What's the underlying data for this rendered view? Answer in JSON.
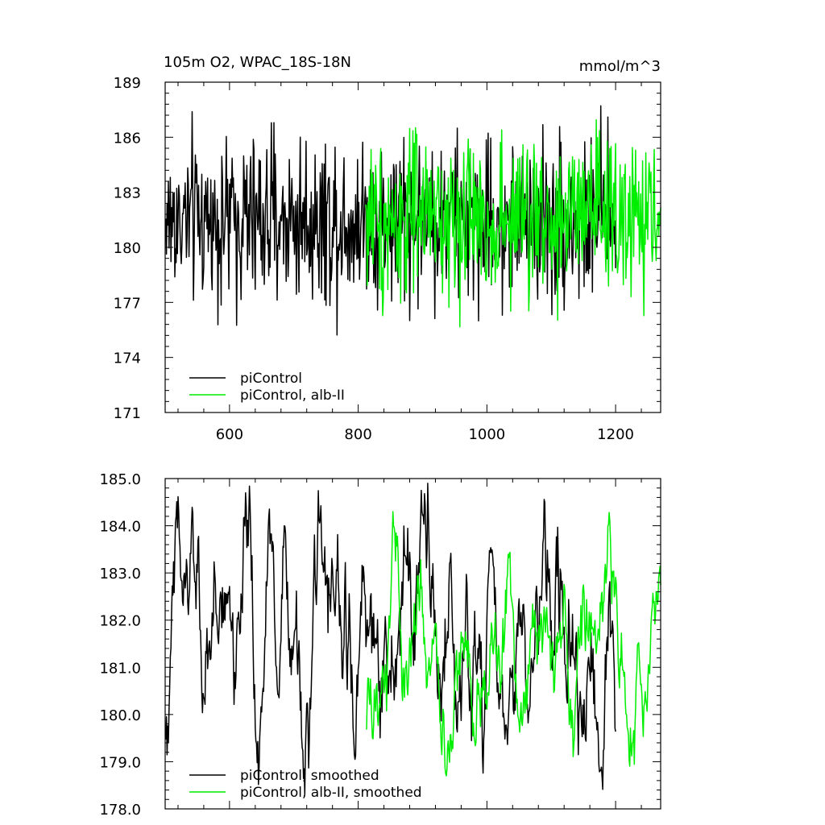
{
  "chart_data": [
    {
      "type": "line",
      "title": "105m O2, WPAC_18S-18N",
      "units": "mmol/m^3",
      "xlabel": "",
      "ylabel": "",
      "xlim": [
        500,
        1270
      ],
      "ylim": [
        171,
        189
      ],
      "xticks": [
        600,
        800,
        1000,
        1200
      ],
      "xtick_labels": [
        "600",
        "800",
        "1000",
        "1200"
      ],
      "yticks": [
        171,
        174,
        177,
        180,
        183,
        186,
        189
      ],
      "ytick_labels": [
        "171",
        "174",
        "177",
        "180",
        "183",
        "186",
        "189"
      ],
      "grid": false,
      "legend_position": "bottom-left",
      "series": [
        {
          "name": "piControl",
          "color": "#000000",
          "x_start": 501,
          "x_end": 1200,
          "noise": "annual",
          "approx_mean": 181.5,
          "approx_min": 173.8,
          "approx_max": 188.6
        },
        {
          "name": "piControl, alb-II",
          "color": "#00ee00",
          "x_start": 812,
          "x_end": 1270,
          "noise": "annual",
          "approx_mean": 181.5,
          "approx_min": 173.8,
          "approx_max": 188.5
        }
      ]
    },
    {
      "type": "line",
      "title": "",
      "xlabel": "",
      "ylabel": "",
      "xlim": [
        500,
        1270
      ],
      "ylim": [
        178.0,
        185.0
      ],
      "xticks": [
        600,
        800,
        1000,
        1200
      ],
      "xtick_labels": [
        "",
        "",
        "",
        ""
      ],
      "yticks": [
        178,
        179,
        180,
        181,
        182,
        183,
        184,
        185
      ],
      "ytick_labels": [
        "178.0",
        "179.0",
        "180.0",
        "181.0",
        "182.0",
        "183.0",
        "184.0",
        "185.0"
      ],
      "grid": false,
      "legend_position": "bottom-left",
      "series": [
        {
          "name": "piControl, smoothed",
          "color": "#000000",
          "x_start": 501,
          "x_end": 1200,
          "noise": "smoothed",
          "approx_mean": 181.4,
          "approx_min": 178.3,
          "approx_max": 184.9
        },
        {
          "name": "piControl, alb-II, smoothed",
          "color": "#00ee00",
          "x_start": 812,
          "x_end": 1270,
          "noise": "smoothed",
          "approx_mean": 181.6,
          "approx_min": 178.7,
          "approx_max": 184.3
        }
      ]
    }
  ]
}
